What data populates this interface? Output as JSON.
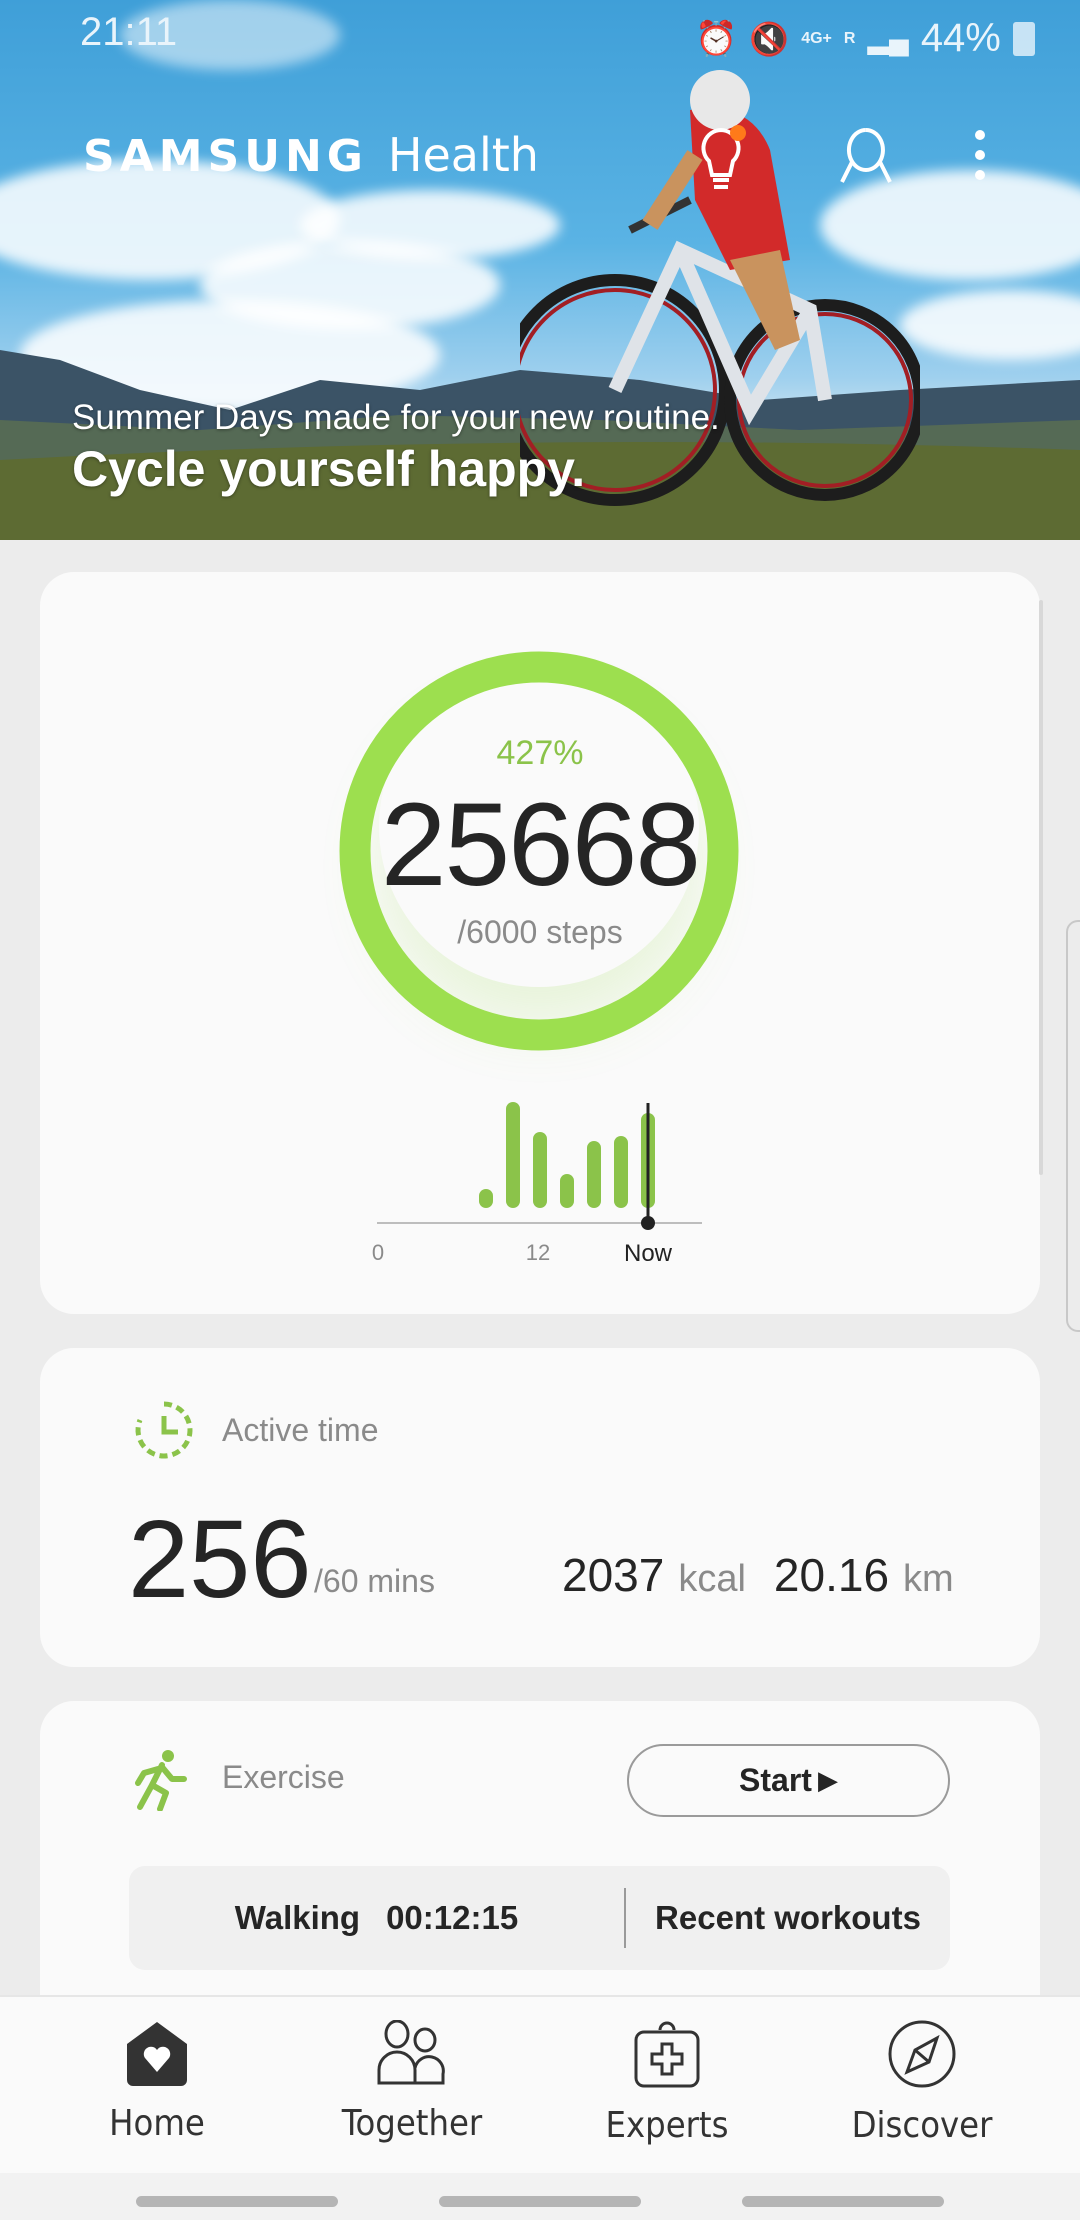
{
  "status_bar": {
    "time": "21:11",
    "battery": "44%",
    "network": "4G+",
    "roaming": "R",
    "icons": [
      "alarm-icon",
      "mute-icon",
      "signal-icon",
      "battery-icon"
    ]
  },
  "header": {
    "brand": "SAMSUNG",
    "app": "Health",
    "icons": [
      "tips-lightbulb-icon",
      "profile-icon",
      "more-options-icon"
    ]
  },
  "banner": {
    "subtitle": "Summer Days made for your new routine.",
    "title": "Cycle yourself happy."
  },
  "steps": {
    "percent": "427%",
    "count": "25668",
    "goal": "/6000 steps",
    "progress_fraction": 1.0,
    "accent": "#9ddf4f"
  },
  "chart_data": {
    "type": "bar",
    "tick_labels": [
      "0",
      "12",
      "Now"
    ],
    "values": [
      19,
      106,
      76,
      34,
      67,
      72,
      95
    ],
    "bar_color": "#8bc34a",
    "note_marker": "Now"
  },
  "active_time": {
    "label": "Active time",
    "value": "256",
    "goal": "/60 mins",
    "kcal_value": "2037",
    "kcal_unit": "kcal",
    "distance_value": "20.16",
    "distance_unit": "km"
  },
  "exercise": {
    "label": "Exercise",
    "start_label": "Start",
    "last_activity": "Walking",
    "last_duration": "00:12:15",
    "recent_label": "Recent workouts"
  },
  "nav": [
    {
      "label": "Home",
      "icon": "home-heart-icon"
    },
    {
      "label": "Together",
      "icon": "people-icon"
    },
    {
      "label": "Experts",
      "icon": "medical-kit-icon"
    },
    {
      "label": "Discover",
      "icon": "compass-icon"
    }
  ]
}
